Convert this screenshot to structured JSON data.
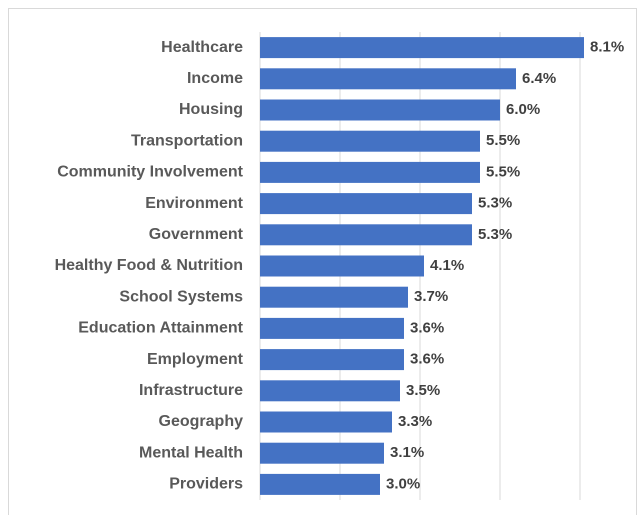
{
  "chart_data": {
    "type": "bar",
    "orientation": "horizontal",
    "categories": [
      "Healthcare",
      "Income",
      "Housing",
      "Transportation",
      "Community Involvement",
      "Environment",
      "Government",
      "Healthy Food & Nutrition",
      "School Systems",
      "Education Attainment",
      "Employment",
      "Infrastructure",
      "Geography",
      "Mental Health",
      "Providers"
    ],
    "values": [
      8.1,
      6.4,
      6.0,
      5.5,
      5.5,
      5.3,
      5.3,
      4.1,
      3.7,
      3.6,
      3.6,
      3.5,
      3.3,
      3.1,
      3.0
    ],
    "value_labels": [
      "8.1%",
      "6.4%",
      "6.0%",
      "5.5%",
      "5.5%",
      "5.3%",
      "5.3%",
      "4.1%",
      "3.7%",
      "3.6%",
      "3.6%",
      "3.5%",
      "3.3%",
      "3.1%",
      "3.0%"
    ],
    "color": "#4472c4",
    "xlim": [
      0,
      9
    ],
    "xticks": [
      0,
      2,
      4,
      6,
      8
    ],
    "grid": true
  }
}
